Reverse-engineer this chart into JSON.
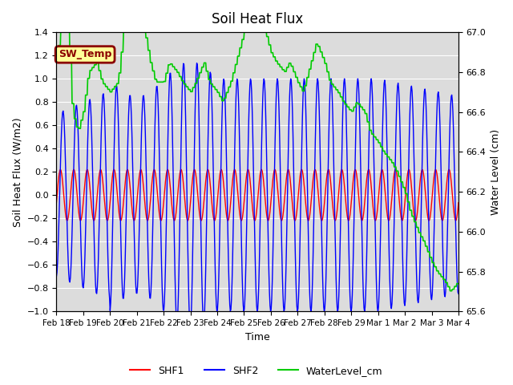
{
  "title": "Soil Heat Flux",
  "ylabel_left": "Soil Heat Flux (W/m2)",
  "ylabel_right": "Water Level (cm)",
  "xlabel": "Time",
  "ylim_left": [
    -1.0,
    1.4
  ],
  "ylim_right": [
    65.6,
    67.0
  ],
  "bg_color": "#dcdcdc",
  "grid_color": "white",
  "annotation_text": "SW_Temp",
  "annotation_bg": "#ffff99",
  "annotation_border": "#8b0000",
  "annotation_text_color": "#8b0000",
  "xtick_labels": [
    "Feb 18",
    "Feb 19",
    "Feb 20",
    "Feb 21",
    "Feb 22",
    "Feb 23",
    "Feb 24",
    "Feb 25",
    "Feb 26",
    "Feb 27",
    "Feb 28",
    "Feb 29",
    "Mar 1",
    "Mar 2",
    "Mar 3",
    "Mar 4"
  ],
  "shf1_color": "red",
  "shf2_color": "blue",
  "wl_color": "#00cc00",
  "legend_entries": [
    "SHF1",
    "SHF2",
    "WaterLevel_cm"
  ],
  "yticks_left": [
    -1.0,
    -0.8,
    -0.6,
    -0.4,
    -0.2,
    0.0,
    0.2,
    0.4,
    0.6,
    0.8,
    1.0,
    1.2,
    1.4
  ],
  "yticks_right": [
    65.6,
    65.8,
    66.0,
    66.2,
    66.4,
    66.6,
    66.8,
    67.0
  ]
}
